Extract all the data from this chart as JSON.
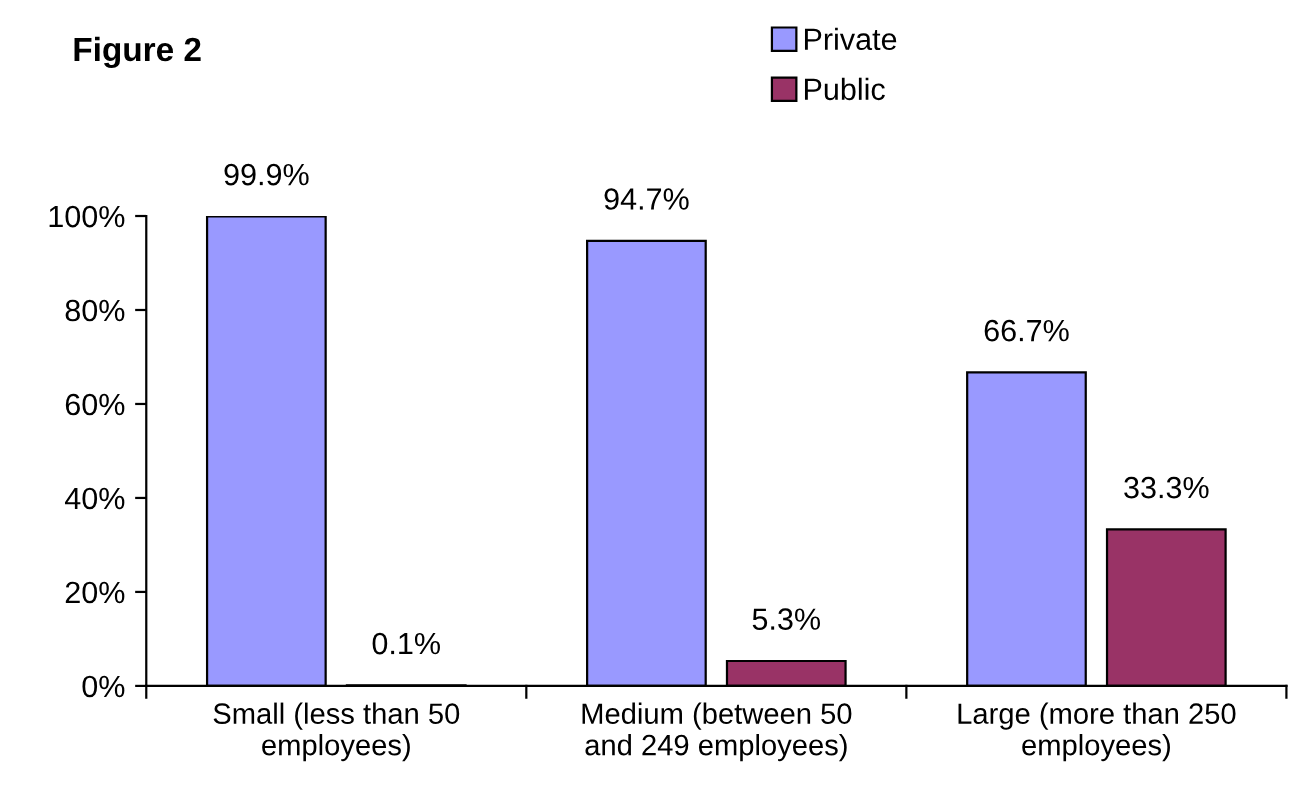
{
  "chart_data": {
    "type": "bar",
    "title": "Figure 2",
    "categories": [
      "Small (less than 50\nemployees)",
      "Medium (between 50\nand 249 employees)",
      "Large (more than 250\nemployees)"
    ],
    "series": [
      {
        "name": "Private",
        "color": "#9999ff",
        "values": [
          99.9,
          94.7,
          66.7
        ],
        "value_labels": [
          "99.9%",
          "94.7%",
          "66.7%"
        ]
      },
      {
        "name": "Public",
        "color": "#993366",
        "values": [
          0.1,
          5.3,
          33.3
        ],
        "value_labels": [
          "0.1%",
          "5.3%",
          "33.3%"
        ]
      }
    ],
    "ylim": [
      0,
      100
    ],
    "yticks": [
      {
        "value": 0,
        "label": "0%"
      },
      {
        "value": 20,
        "label": "20%"
      },
      {
        "value": 40,
        "label": "40%"
      },
      {
        "value": 60,
        "label": "60%"
      },
      {
        "value": 80,
        "label": "80%"
      },
      {
        "value": 100,
        "label": "100%"
      }
    ],
    "grid": false,
    "legend": "top right"
  }
}
